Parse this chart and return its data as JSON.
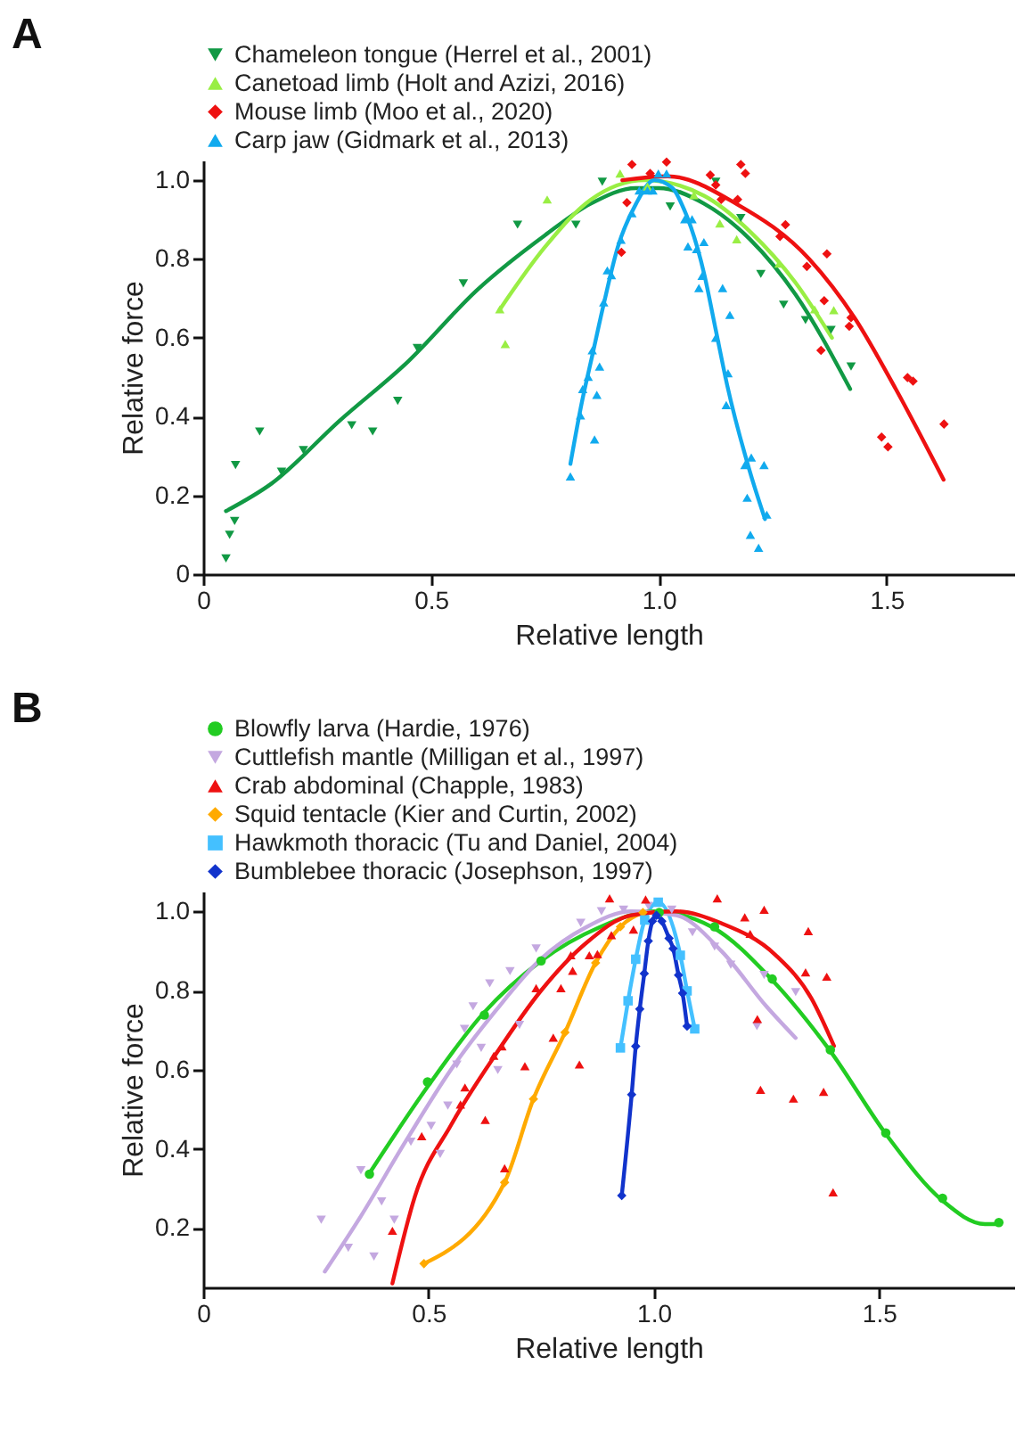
{
  "chart_data": [
    {
      "type": "scatter",
      "title": "A",
      "xlabel": "Relative length",
      "ylabel": "Relative force",
      "xlim": [
        0,
        1.78
      ],
      "ylim": [
        0,
        1.05
      ],
      "xticks": [
        0,
        0.5,
        {
          "value": 1,
          "label": "1.0"
        },
        1.5
      ],
      "yticks": [
        0,
        0.2,
        0.4,
        0.6,
        0.8,
        {
          "value": 1,
          "label": "1.0"
        }
      ],
      "grid": false,
      "legend": "top",
      "series": [
        {
          "name": "Chameleon tongue (Herrel et al., 2001)",
          "type": "scatter",
          "marker": "triangle-down",
          "color": "#119944",
          "x": [
            0.05,
            0.058,
            0.069,
            0.071,
            0.124,
            0.172,
            0.22,
            0.326,
            0.372,
            0.427,
            0.47,
            0.571,
            0.69,
            0.818,
            0.876,
            1.025,
            1.125,
            1.18,
            1.224,
            1.274,
            1.322,
            1.378,
            1.422
          ],
          "values": [
            0.04,
            0.1,
            0.135,
            0.277,
            0.362,
            0.26,
            0.315,
            0.378,
            0.362,
            0.44,
            0.574,
            0.738,
            0.887,
            0.887,
            0.996,
            0.933,
            0.996,
            0.904,
            0.762,
            0.684,
            0.645,
            0.62,
            0.527
          ]
        },
        {
          "name": "Canetoad limb (Holt and Azizi, 2016)",
          "type": "scatter",
          "marker": "triangle",
          "color": "#99ee44",
          "x": [
            0.651,
            0.663,
            0.755,
            0.915,
            0.975,
            1.077,
            1.134,
            1.171,
            1.264,
            1.342,
            1.384
          ],
          "values": [
            0.672,
            0.584,
            0.951,
            1.017,
            0.984,
            0.962,
            0.89,
            0.85,
            0.788,
            0.672,
            0.67
          ]
        },
        {
          "name": "Mouse limb (Moo et al., 2020)",
          "type": "scatter",
          "marker": "diamond",
          "color": "#ee1111",
          "x": [
            0.941,
            0.93,
            0.918,
            0.981,
            1.017,
            1.113,
            1.125,
            1.137,
            1.18,
            1.19,
            1.173,
            1.278,
            1.266,
            1.325,
            1.369,
            1.363,
            1.418,
            1.422,
            1.356,
            1.546,
            1.558,
            1.489,
            1.503,
            1.626
          ],
          "values": [
            1.04,
            0.943,
            0.817,
            1.017,
            1.046,
            1.013,
            0.988,
            0.951,
            1.04,
            1.017,
            0.951,
            0.887,
            0.857,
            0.781,
            0.813,
            0.694,
            0.629,
            0.651,
            0.568,
            0.499,
            0.49,
            0.348,
            0.323,
            0.381
          ]
        },
        {
          "name": "Carp jaw (Gidmark et al., 2013)",
          "type": "scatter",
          "marker": "triangle",
          "color": "#11aaee",
          "x": [
            0.806,
            0.828,
            0.859,
            0.833,
            0.845,
            0.864,
            0.854,
            0.87,
            0.879,
            0.887,
            0.896,
            0.917,
            0.941,
            0.957,
            0.975,
            0.987,
            0.999,
            1.017,
            1.057,
            1.073,
            1.064,
            1.083,
            1.099,
            1.095,
            1.088,
            1.14,
            1.156,
            1.125,
            1.152,
            1.148,
            1.189,
            1.203,
            1.231,
            1.194,
            1.237,
            1.201,
            1.219
          ],
          "values": [
            0.248,
            0.403,
            0.342,
            0.47,
            0.501,
            0.455,
            0.568,
            0.527,
            0.69,
            0.771,
            0.759,
            0.849,
            0.916,
            0.974,
            0.974,
            0.974,
            1.017,
            1.017,
            0.901,
            0.901,
            0.832,
            0.825,
            0.843,
            0.757,
            0.726,
            0.726,
            0.658,
            0.6,
            0.51,
            0.429,
            0.277,
            0.296,
            0.277,
            0.194,
            0.151,
            0.1,
            0.067
          ]
        },
        {
          "type": "line",
          "color": "#119944",
          "x": [
            0.05,
            0.15,
            0.3,
            0.45,
            0.6,
            0.75,
            0.85,
            0.95,
            1.0,
            1.1,
            1.2,
            1.3,
            1.42
          ],
          "values": [
            0.16,
            0.23,
            0.39,
            0.54,
            0.72,
            0.86,
            0.94,
            0.98,
            0.98,
            0.94,
            0.85,
            0.71,
            0.47
          ]
        },
        {
          "type": "line",
          "color": "#99ee44",
          "x": [
            0.65,
            0.75,
            0.85,
            0.97,
            1.1,
            1.2,
            1.3,
            1.38
          ],
          "values": [
            0.67,
            0.83,
            0.95,
            1.0,
            0.96,
            0.87,
            0.74,
            0.6
          ]
        },
        {
          "type": "line",
          "color": "#ee1111",
          "x": [
            0.92,
            1.02,
            1.17,
            1.33,
            1.43,
            1.52,
            1.625
          ],
          "values": [
            1.0,
            1.01,
            0.94,
            0.8,
            0.65,
            0.47,
            0.24
          ]
        },
        {
          "type": "line",
          "color": "#11aaee",
          "x": [
            0.806,
            0.83,
            0.855,
            0.88,
            0.91,
            0.95,
            0.99,
            1.03,
            1.05,
            1.1,
            1.125,
            1.15,
            1.2,
            1.233
          ],
          "values": [
            0.28,
            0.43,
            0.56,
            0.69,
            0.83,
            0.94,
            1.0,
            0.98,
            0.94,
            0.76,
            0.62,
            0.48,
            0.26,
            0.14
          ]
        }
      ]
    },
    {
      "type": "scatter",
      "title": "B",
      "xlabel": "Relative length",
      "ylabel": "Relative force",
      "xlim": [
        0,
        1.8
      ],
      "ylim": [
        0.05,
        1.05
      ],
      "xticks": [
        0,
        0.5,
        {
          "value": 1,
          "label": "1.0"
        },
        1.5
      ],
      "yticks": [
        0.2,
        0.4,
        0.6,
        0.8,
        {
          "value": 1,
          "label": "1.0"
        }
      ],
      "grid": false,
      "legend": "top",
      "series": [
        {
          "name": "Blowfly larva (Hardie, 1976)",
          "type": "scatter",
          "marker": "circle",
          "color": "#22cc22",
          "x": [
            0.369,
            0.498,
            0.624,
            0.75,
            1.012,
            1.135,
            1.263,
            1.392,
            1.515,
            1.641,
            1.766
          ],
          "values": [
            0.336,
            0.569,
            0.738,
            0.875,
            0.997,
            0.961,
            0.829,
            0.65,
            0.44,
            0.275,
            0.214
          ]
        },
        {
          "name": "Cuttlefish mantle (Milligan et al., 1997)",
          "type": "scatter",
          "marker": "triangle-down",
          "color": "#c4a8e0",
          "x": [
            0.262,
            0.322,
            0.379,
            0.35,
            0.396,
            0.424,
            0.461,
            0.506,
            0.526,
            0.543,
            0.563,
            0.58,
            0.599,
            0.617,
            0.636,
            0.654,
            0.681,
            0.702,
            0.739,
            0.838,
            0.884,
            0.933,
            0.988,
            1.04,
            1.086,
            1.135,
            1.171,
            1.245,
            1.315,
            1.229
          ],
          "values": [
            0.221,
            0.15,
            0.128,
            0.346,
            0.267,
            0.221,
            0.418,
            0.458,
            0.387,
            0.509,
            0.613,
            0.703,
            0.76,
            0.655,
            0.818,
            0.599,
            0.849,
            0.713,
            0.906,
            0.971,
            1.0,
            1.004,
            1.014,
            1.004,
            0.947,
            0.911,
            0.865,
            0.839,
            0.796,
            0.71
          ]
        },
        {
          "name": "Crab abdominal (Chapple, 1983)",
          "type": "scatter",
          "marker": "triangle",
          "color": "#ee1111",
          "x": [
            0.42,
            0.485,
            0.571,
            0.581,
            0.626,
            0.645,
            0.663,
            0.669,
            0.714,
            0.739,
            0.777,
            0.794,
            0.816,
            0.82,
            0.835,
            0.857,
            0.875,
            0.906,
            0.902,
            0.982,
            0.955,
            1.141,
            1.202,
            1.245,
            1.214,
            1.343,
            1.337,
            1.384,
            1.23,
            1.237,
            1.31,
            1.377,
            1.398
          ],
          "values": [
            0.193,
            0.432,
            0.512,
            0.555,
            0.473,
            0.635,
            0.659,
            0.351,
            0.609,
            0.806,
            0.681,
            0.806,
            0.889,
            0.85,
            0.613,
            0.889,
            0.892,
            0.94,
            1.033,
            1.03,
            0.954,
            1.033,
            0.985,
            1.004,
            0.943,
            0.95,
            0.846,
            0.835,
            0.728,
            0.549,
            0.527,
            0.544,
            0.29
          ]
        },
        {
          "name": "Squid tentacle (Kier and Curtin, 2002)",
          "type": "line",
          "marker": "diamond",
          "color": "#ffaa00",
          "x": [
            0.49,
            0.669,
            0.733,
            0.803,
            0.871,
            0.926,
            0.976
          ],
          "values": [
            0.11,
            0.315,
            0.526,
            0.694,
            0.87,
            0.961,
            0.997
          ]
        },
        {
          "name": "Hawkmoth thoracic (Tu and Daniel, 2004)",
          "type": "line",
          "marker": "square",
          "color": "#44c0ff",
          "x": [
            0.926,
            0.943,
            0.96,
            0.98,
            1.01,
            1.059,
            1.074,
            1.091
          ],
          "values": [
            0.655,
            0.774,
            0.879,
            0.978,
            1.023,
            0.889,
            0.799,
            0.703
          ]
        },
        {
          "name": "Bumblebee thoracic (Josephson, 1997)",
          "type": "line",
          "marker": "diamond",
          "color": "#1133cc",
          "x": [
            0.929,
            0.951,
            0.96,
            0.969,
            0.979,
            0.988,
            0.997,
            1.006,
            1.018,
            1.034,
            1.043,
            1.055,
            1.064,
            1.074
          ],
          "values": [
            0.282,
            0.537,
            0.659,
            0.753,
            0.843,
            0.925,
            0.975,
            0.99,
            0.975,
            0.932,
            0.906,
            0.839,
            0.793,
            0.71
          ]
        },
        {
          "type": "line",
          "color": "#22cc22",
          "x": [
            0.37,
            0.5,
            0.62,
            0.75,
            0.88,
            1.0,
            1.13,
            1.26,
            1.39,
            1.52,
            1.64,
            1.735,
            1.77
          ],
          "values": [
            0.34,
            0.56,
            0.74,
            0.875,
            0.96,
            1.0,
            0.96,
            0.83,
            0.65,
            0.43,
            0.27,
            0.21,
            0.21
          ]
        },
        {
          "type": "line",
          "color": "#c4a8e0",
          "x": [
            0.27,
            0.35,
            0.45,
            0.55,
            0.65,
            0.75,
            0.85,
            0.95,
            1.05,
            1.15,
            1.25,
            1.315
          ],
          "values": [
            0.09,
            0.23,
            0.42,
            0.6,
            0.75,
            0.88,
            0.96,
            1.0,
            0.99,
            0.9,
            0.76,
            0.68
          ]
        },
        {
          "type": "line",
          "color": "#ee1111",
          "x": [
            0.42,
            0.47,
            0.55,
            0.65,
            0.75,
            0.85,
            0.95,
            1.05,
            1.15,
            1.27,
            1.35,
            1.4
          ],
          "values": [
            0.06,
            0.28,
            0.46,
            0.64,
            0.8,
            0.92,
            0.99,
            1.0,
            0.97,
            0.89,
            0.78,
            0.66
          ]
        }
      ]
    }
  ]
}
